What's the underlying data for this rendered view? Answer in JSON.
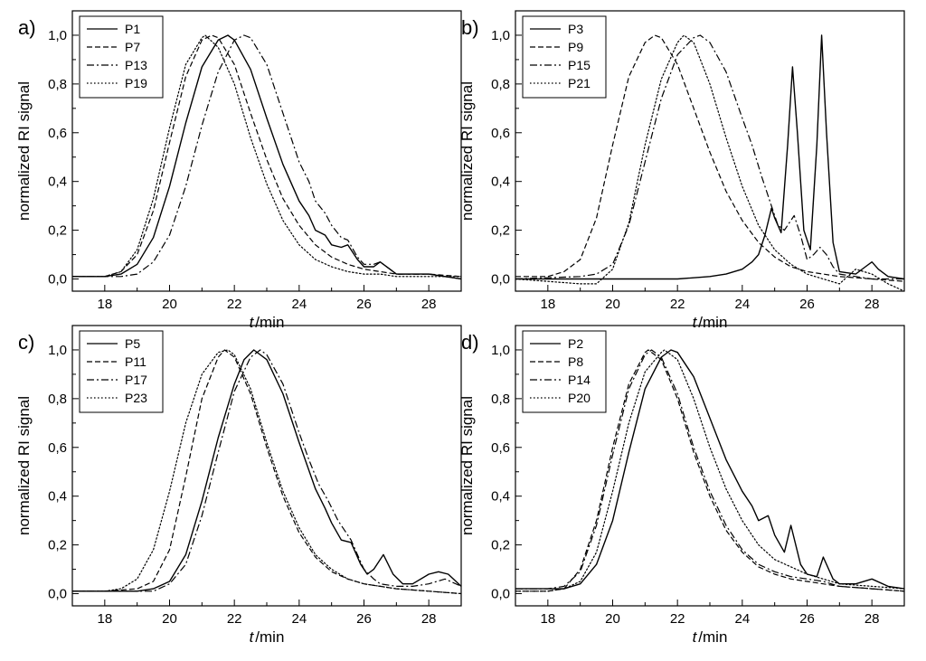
{
  "chart_data": [
    {
      "type": "line",
      "panel_label": "a)",
      "xlabel_italic": "t",
      "xlabel_unit": "/min",
      "ylabel": "normalized RI signal",
      "xlim": [
        17,
        29
      ],
      "ylim": [
        -0.05,
        1.1
      ],
      "xticks": [
        18,
        20,
        22,
        24,
        26,
        28
      ],
      "xtick_labels": [
        "18",
        "20",
        "22",
        "24",
        "26",
        "28"
      ],
      "yticks": [
        0,
        0.2,
        0.4,
        0.6,
        0.8,
        1.0
      ],
      "ytick_labels": [
        "0,0",
        "0,2",
        "0,4",
        "0,6",
        "0,8",
        "1,0"
      ],
      "legend_position": "top-left",
      "series": [
        {
          "name": "P1",
          "style": "solid",
          "x": [
            17,
            18,
            18.5,
            19,
            19.5,
            20,
            20.5,
            21,
            21.5,
            21.8,
            22,
            22.5,
            23,
            23.5,
            24,
            24.3,
            24.5,
            24.8,
            25,
            25.3,
            25.5,
            25.8,
            26,
            26.3,
            26.5,
            26.8,
            27,
            27.5,
            28,
            28.5,
            29
          ],
          "y": [
            0.01,
            0.01,
            0.02,
            0.06,
            0.17,
            0.38,
            0.64,
            0.87,
            0.98,
            1.0,
            0.98,
            0.86,
            0.66,
            0.47,
            0.32,
            0.26,
            0.2,
            0.18,
            0.14,
            0.13,
            0.14,
            0.08,
            0.05,
            0.05,
            0.07,
            0.04,
            0.02,
            0.02,
            0.02,
            0.01,
            0.0
          ]
        },
        {
          "name": "P7",
          "style": "dashed",
          "x": [
            17,
            18,
            18.5,
            19,
            19.5,
            20,
            20.5,
            21,
            21.3,
            21.5,
            22,
            22.5,
            23,
            23.5,
            24,
            24.5,
            25,
            25.5,
            26,
            26.5,
            27,
            27.5,
            28,
            29
          ],
          "y": [
            0.01,
            0.01,
            0.03,
            0.1,
            0.28,
            0.56,
            0.83,
            0.98,
            1.0,
            0.99,
            0.88,
            0.68,
            0.49,
            0.33,
            0.22,
            0.14,
            0.09,
            0.06,
            0.04,
            0.03,
            0.02,
            0.02,
            0.02,
            0.01
          ]
        },
        {
          "name": "P13",
          "style": "dashdot",
          "x": [
            17,
            18,
            18.5,
            19,
            19.5,
            20,
            20.5,
            21,
            21.5,
            22,
            22.3,
            22.5,
            23,
            23.5,
            24,
            24.3,
            24.5,
            24.8,
            25,
            25.3,
            25.5,
            25.8,
            26,
            26.3,
            26.5,
            26.8,
            27,
            27.5,
            28,
            28.5,
            29
          ],
          "y": [
            0.01,
            0.01,
            0.01,
            0.02,
            0.07,
            0.18,
            0.38,
            0.63,
            0.85,
            0.98,
            1.0,
            0.99,
            0.88,
            0.68,
            0.48,
            0.4,
            0.32,
            0.27,
            0.22,
            0.17,
            0.16,
            0.09,
            0.06,
            0.06,
            0.07,
            0.04,
            0.02,
            0.02,
            0.02,
            0.01,
            0.0
          ]
        },
        {
          "name": "P19",
          "style": "dotted",
          "x": [
            17,
            18,
            18.5,
            19,
            19.5,
            20,
            20.5,
            21,
            21.1,
            21.5,
            22,
            22.5,
            23,
            23.5,
            24,
            24.5,
            25,
            25.5,
            26,
            26.5,
            27,
            28,
            29
          ],
          "y": [
            0.01,
            0.01,
            0.03,
            0.12,
            0.33,
            0.62,
            0.88,
            0.99,
            1.0,
            0.95,
            0.8,
            0.58,
            0.39,
            0.24,
            0.14,
            0.08,
            0.05,
            0.03,
            0.02,
            0.02,
            0.01,
            0.01,
            0.01
          ]
        }
      ]
    },
    {
      "type": "line",
      "panel_label": "b)",
      "xlabel_italic": "t",
      "xlabel_unit": "/min",
      "ylabel": "normalized RI signal",
      "xlim": [
        17,
        29
      ],
      "ylim": [
        -0.05,
        1.1
      ],
      "xticks": [
        18,
        20,
        22,
        24,
        26,
        28
      ],
      "xtick_labels": [
        "18",
        "20",
        "22",
        "24",
        "26",
        "28"
      ],
      "yticks": [
        0,
        0.2,
        0.4,
        0.6,
        0.8,
        1.0
      ],
      "ytick_labels": [
        "0,0",
        "0,2",
        "0,4",
        "0,6",
        "0,8",
        "1,0"
      ],
      "legend_position": "top-left",
      "series": [
        {
          "name": "P3",
          "style": "solid",
          "x": [
            17,
            20,
            22,
            23,
            23.5,
            24,
            24.3,
            24.5,
            24.7,
            24.9,
            25,
            25.2,
            25.4,
            25.55,
            25.7,
            25.9,
            26.1,
            26.3,
            26.45,
            26.6,
            26.8,
            27,
            27.5,
            27.8,
            28,
            28.2,
            28.5,
            29
          ],
          "y": [
            0,
            0,
            0,
            0.01,
            0.02,
            0.04,
            0.07,
            0.1,
            0.18,
            0.29,
            0.25,
            0.19,
            0.55,
            0.87,
            0.6,
            0.2,
            0.12,
            0.55,
            1.0,
            0.6,
            0.15,
            0.03,
            0.02,
            0.05,
            0.07,
            0.04,
            0.01,
            0.0
          ]
        },
        {
          "name": "P9",
          "style": "dashed",
          "x": [
            17,
            18,
            18.5,
            19,
            19.5,
            20,
            20.5,
            21,
            21.3,
            21.5,
            22,
            22.5,
            23,
            23.5,
            24,
            24.5,
            25,
            25.5,
            26,
            26.5,
            27,
            28,
            29
          ],
          "y": [
            0.01,
            0.01,
            0.03,
            0.08,
            0.25,
            0.55,
            0.83,
            0.97,
            1.0,
            0.99,
            0.88,
            0.7,
            0.52,
            0.36,
            0.24,
            0.15,
            0.09,
            0.05,
            0.03,
            0.02,
            0.01,
            0.0,
            -0.01
          ]
        },
        {
          "name": "P15",
          "style": "dashdot",
          "x": [
            17,
            19,
            19.5,
            20,
            20.5,
            21,
            21.5,
            22,
            22.5,
            22.7,
            23,
            23.5,
            24,
            24.3,
            24.6,
            24.9,
            25.1,
            25.3,
            25.6,
            25.8,
            26,
            26.2,
            26.4,
            26.6,
            26.8,
            27,
            27.5,
            28,
            29
          ],
          "y": [
            0,
            0.01,
            0.02,
            0.06,
            0.22,
            0.48,
            0.74,
            0.92,
            0.99,
            1.0,
            0.97,
            0.85,
            0.66,
            0.55,
            0.42,
            0.3,
            0.22,
            0.2,
            0.26,
            0.18,
            0.08,
            0.1,
            0.13,
            0.1,
            0.05,
            0.02,
            0.01,
            0.0,
            0.0
          ]
        },
        {
          "name": "P21",
          "style": "dotted",
          "x": [
            17,
            18,
            19,
            19.5,
            20,
            20.5,
            21,
            21.5,
            22,
            22.2,
            22.5,
            23,
            23.5,
            24,
            24.5,
            25,
            25.5,
            26,
            26.5,
            27,
            27.5,
            28,
            28.5,
            29
          ],
          "y": [
            0,
            -0.01,
            -0.02,
            -0.02,
            0.04,
            0.23,
            0.55,
            0.82,
            0.97,
            1.0,
            0.97,
            0.8,
            0.58,
            0.38,
            0.22,
            0.12,
            0.06,
            0.02,
            0.0,
            -0.02,
            0.04,
            0.02,
            -0.02,
            -0.05
          ]
        }
      ]
    },
    {
      "type": "line",
      "panel_label": "c)",
      "xlabel_italic": "t",
      "xlabel_unit": "/min",
      "ylabel": "normalized RI signal",
      "xlim": [
        17,
        29
      ],
      "ylim": [
        -0.05,
        1.1
      ],
      "xticks": [
        18,
        20,
        22,
        24,
        26,
        28
      ],
      "xtick_labels": [
        "18",
        "20",
        "22",
        "24",
        "26",
        "28"
      ],
      "yticks": [
        0,
        0.2,
        0.4,
        0.6,
        0.8,
        1.0
      ],
      "ytick_labels": [
        "0,0",
        "0,2",
        "0,4",
        "0,6",
        "0,8",
        "1,0"
      ],
      "legend_position": "top-left",
      "series": [
        {
          "name": "P5",
          "style": "solid",
          "x": [
            17,
            18,
            19,
            19.5,
            20,
            20.5,
            21,
            21.5,
            22,
            22.3,
            22.6,
            23,
            23.5,
            24,
            24.5,
            24.8,
            25,
            25.3,
            25.6,
            25.9,
            26.1,
            26.3,
            26.6,
            26.9,
            27.2,
            27.5,
            28,
            28.3,
            28.6,
            29
          ],
          "y": [
            0.01,
            0.01,
            0.01,
            0.02,
            0.05,
            0.16,
            0.38,
            0.64,
            0.86,
            0.96,
            1.0,
            0.96,
            0.82,
            0.62,
            0.43,
            0.35,
            0.29,
            0.22,
            0.21,
            0.12,
            0.08,
            0.1,
            0.16,
            0.08,
            0.04,
            0.04,
            0.08,
            0.09,
            0.08,
            0.03
          ]
        },
        {
          "name": "P11",
          "style": "dashed",
          "x": [
            17,
            18,
            19,
            19.5,
            20,
            20.5,
            21,
            21.5,
            21.7,
            22,
            22.5,
            23,
            23.5,
            24,
            24.5,
            25,
            25.5,
            26,
            26.5,
            27,
            28,
            29
          ],
          "y": [
            0.01,
            0.01,
            0.02,
            0.05,
            0.18,
            0.48,
            0.8,
            0.97,
            1.0,
            0.97,
            0.82,
            0.6,
            0.4,
            0.25,
            0.15,
            0.09,
            0.06,
            0.04,
            0.03,
            0.02,
            0.01,
            0.0
          ]
        },
        {
          "name": "P17",
          "style": "dashdot",
          "x": [
            17,
            18,
            19,
            19.5,
            20,
            20.5,
            21,
            21.5,
            22,
            22.5,
            22.8,
            23,
            23.5,
            24,
            24.3,
            24.6,
            24.9,
            25.2,
            25.4,
            25.6,
            25.8,
            26,
            26.3,
            26.5,
            27,
            27.5,
            28,
            28.5,
            29
          ],
          "y": [
            0.01,
            0.01,
            0.01,
            0.01,
            0.04,
            0.12,
            0.32,
            0.58,
            0.83,
            0.97,
            1.0,
            0.98,
            0.86,
            0.66,
            0.55,
            0.45,
            0.38,
            0.3,
            0.26,
            0.22,
            0.16,
            0.1,
            0.06,
            0.04,
            0.03,
            0.03,
            0.04,
            0.06,
            0.03
          ]
        },
        {
          "name": "P23",
          "style": "dotted",
          "x": [
            17,
            18,
            18.5,
            19,
            19.5,
            20,
            20.5,
            21,
            21.5,
            21.8,
            22,
            22.5,
            23,
            23.5,
            24,
            24.5,
            25,
            25.5,
            26,
            26.5,
            27,
            28,
            29
          ],
          "y": [
            0.01,
            0.01,
            0.02,
            0.06,
            0.18,
            0.42,
            0.7,
            0.9,
            0.99,
            1.0,
            0.98,
            0.84,
            0.62,
            0.42,
            0.27,
            0.16,
            0.1,
            0.06,
            0.04,
            0.03,
            0.02,
            0.01,
            0.0
          ]
        }
      ]
    },
    {
      "type": "line",
      "panel_label": "d)",
      "xlabel_italic": "t",
      "xlabel_unit": "/min",
      "ylabel": "normalized RI signal",
      "xlim": [
        17,
        29
      ],
      "ylim": [
        -0.05,
        1.1
      ],
      "xticks": [
        18,
        20,
        22,
        24,
        26,
        28
      ],
      "xtick_labels": [
        "18",
        "20",
        "22",
        "24",
        "26",
        "28"
      ],
      "yticks": [
        0,
        0.2,
        0.4,
        0.6,
        0.8,
        1.0
      ],
      "ytick_labels": [
        "0,0",
        "0,2",
        "0,4",
        "0,6",
        "0,8",
        "1,0"
      ],
      "legend_position": "top-left",
      "series": [
        {
          "name": "P2",
          "style": "solid",
          "x": [
            17,
            18,
            18.5,
            19,
            19.5,
            20,
            20.5,
            21,
            21.5,
            21.8,
            22,
            22.5,
            23,
            23.5,
            24,
            24.3,
            24.5,
            24.8,
            25,
            25.3,
            25.5,
            25.8,
            26,
            26.3,
            26.5,
            26.8,
            27,
            27.5,
            28,
            28.5,
            29
          ],
          "y": [
            0.02,
            0.02,
            0.02,
            0.04,
            0.12,
            0.3,
            0.58,
            0.84,
            0.97,
            1.0,
            0.99,
            0.89,
            0.72,
            0.55,
            0.42,
            0.36,
            0.3,
            0.32,
            0.24,
            0.17,
            0.28,
            0.12,
            0.08,
            0.07,
            0.15,
            0.06,
            0.04,
            0.04,
            0.06,
            0.03,
            0.02
          ]
        },
        {
          "name": "P8",
          "style": "dashed",
          "x": [
            17,
            18,
            18.5,
            19,
            19.5,
            20,
            20.5,
            21,
            21.1,
            21.5,
            22,
            22.5,
            23,
            23.5,
            24,
            24.5,
            25,
            25.5,
            26,
            26.5,
            27,
            28,
            29
          ],
          "y": [
            0.01,
            0.01,
            0.02,
            0.1,
            0.3,
            0.6,
            0.86,
            0.99,
            1.0,
            0.96,
            0.8,
            0.58,
            0.4,
            0.26,
            0.17,
            0.11,
            0.08,
            0.06,
            0.05,
            0.04,
            0.03,
            0.02,
            0.01
          ]
        },
        {
          "name": "P14",
          "style": "dashdot",
          "x": [
            17,
            18,
            18.5,
            19,
            19.5,
            20,
            20.5,
            21,
            21.2,
            21.5,
            22,
            22.5,
            23,
            23.5,
            24,
            24.5,
            25,
            25.5,
            26,
            26.5,
            27,
            28,
            29
          ],
          "y": [
            0.02,
            0.02,
            0.03,
            0.09,
            0.28,
            0.57,
            0.84,
            0.98,
            1.0,
            0.97,
            0.82,
            0.6,
            0.42,
            0.28,
            0.18,
            0.12,
            0.09,
            0.07,
            0.06,
            0.05,
            0.03,
            0.02,
            0.01
          ]
        },
        {
          "name": "P20",
          "style": "dotted",
          "x": [
            17,
            18,
            18.5,
            19,
            19.5,
            20,
            20.5,
            21,
            21.5,
            21.6,
            22,
            22.5,
            23,
            23.5,
            24,
            24.5,
            25,
            25.5,
            26,
            26.5,
            27,
            28,
            29
          ],
          "y": [
            0.01,
            0.01,
            0.02,
            0.05,
            0.17,
            0.42,
            0.7,
            0.91,
            0.99,
            1.0,
            0.96,
            0.8,
            0.6,
            0.43,
            0.3,
            0.2,
            0.14,
            0.11,
            0.08,
            0.06,
            0.04,
            0.03,
            0.02
          ]
        }
      ]
    }
  ]
}
